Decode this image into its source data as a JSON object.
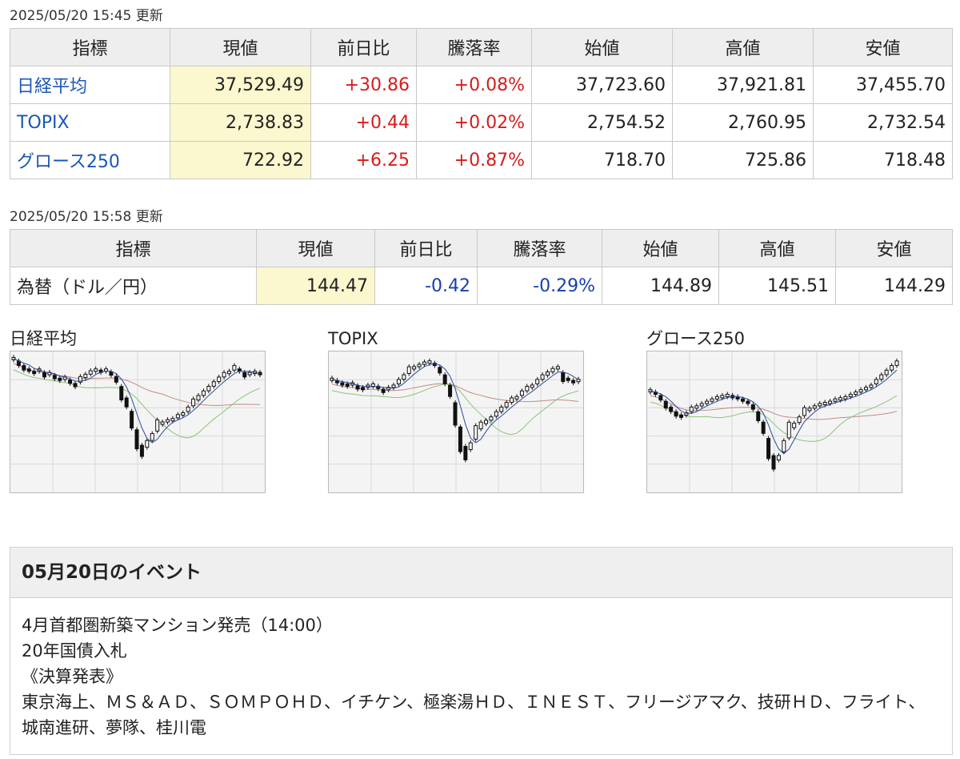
{
  "stamp1": "2025/05/20 15:45 更新",
  "stamp2": "2025/05/20 15:58 更新",
  "headers": [
    "指標",
    "現値",
    "前日比",
    "騰落率",
    "始値",
    "高値",
    "安値"
  ],
  "indices": [
    {
      "name": "日経平均",
      "current": "37,529.49",
      "change": "+30.86",
      "pct": "+0.08%",
      "open": "37,723.60",
      "high": "37,921.81",
      "low": "37,455.70"
    },
    {
      "name": "TOPIX",
      "current": "2,738.83",
      "change": "+0.44",
      "pct": "+0.02%",
      "open": "2,754.52",
      "high": "2,760.95",
      "low": "2,732.54"
    },
    {
      "name": "グロース250",
      "current": "722.92",
      "change": "+6.25",
      "pct": "+0.87%",
      "open": "718.70",
      "high": "725.86",
      "low": "718.48"
    }
  ],
  "fx": {
    "name": "為替（ドル／円）",
    "current": "144.47",
    "change": "-0.42",
    "pct": "-0.29%",
    "open": "144.89",
    "high": "145.51",
    "low": "144.29"
  },
  "colors": {
    "up": "#d61c1c",
    "down": "#1540b0",
    "current_bg": "#fbf8cf",
    "link": "#1a56b8",
    "ma_short": "#2a4aa0",
    "ma_mid": "#8cc27a",
    "ma_long": "#c48a86"
  },
  "charts": [
    {
      "title": "日経平均"
    },
    {
      "title": "TOPIX"
    },
    {
      "title": "グロース250"
    }
  ],
  "chart_data": [
    {
      "type": "candlestick",
      "title": "日経平均",
      "shape": [
        0.02,
        0.06,
        0.1,
        0.12,
        0.14,
        0.12,
        0.16,
        0.15,
        0.18,
        0.2,
        0.19,
        0.22,
        0.25,
        0.2,
        0.17,
        0.14,
        0.12,
        0.13,
        0.12,
        0.15,
        0.2,
        0.32,
        0.4,
        0.55,
        0.72,
        0.82,
        0.76,
        0.7,
        0.6,
        0.58,
        0.56,
        0.55,
        0.52,
        0.5,
        0.46,
        0.4,
        0.36,
        0.32,
        0.28,
        0.24,
        0.2,
        0.16,
        0.14,
        0.1,
        0.12,
        0.16,
        0.15,
        0.14,
        0.15
      ]
    },
    {
      "type": "candlestick",
      "title": "TOPIX",
      "shape": [
        0.2,
        0.22,
        0.24,
        0.25,
        0.24,
        0.27,
        0.28,
        0.26,
        0.25,
        0.27,
        0.3,
        0.28,
        0.26,
        0.22,
        0.18,
        0.12,
        0.1,
        0.08,
        0.06,
        0.05,
        0.07,
        0.12,
        0.2,
        0.3,
        0.5,
        0.72,
        0.84,
        0.78,
        0.66,
        0.6,
        0.57,
        0.54,
        0.5,
        0.46,
        0.42,
        0.38,
        0.36,
        0.32,
        0.28,
        0.26,
        0.22,
        0.18,
        0.15,
        0.12,
        0.1,
        0.18,
        0.2,
        0.22,
        0.21
      ]
    },
    {
      "type": "candlestick",
      "title": "グロース250",
      "shape": [
        0.3,
        0.32,
        0.36,
        0.42,
        0.46,
        0.5,
        0.52,
        0.5,
        0.46,
        0.44,
        0.42,
        0.4,
        0.38,
        0.36,
        0.35,
        0.34,
        0.35,
        0.36,
        0.38,
        0.4,
        0.44,
        0.52,
        0.62,
        0.8,
        0.92,
        0.88,
        0.78,
        0.64,
        0.6,
        0.55,
        0.48,
        0.46,
        0.44,
        0.42,
        0.41,
        0.4,
        0.38,
        0.37,
        0.36,
        0.34,
        0.32,
        0.3,
        0.28,
        0.26,
        0.22,
        0.18,
        0.14,
        0.1,
        0.06
      ]
    }
  ],
  "events": {
    "title": "05月20日のイベント",
    "lines": [
      "4月首都圏新築マンション発売（14:00）",
      "20年国債入札",
      "《決算発表》",
      "東京海上、ＭＳ＆ＡＤ、ＳＯＭＰＯＨＤ、イチケン、極楽湯ＨＤ、ＩＮＥＳＴ、フリージアマク、技研ＨＤ、フライト、城南進研、夢隊、桂川電"
    ]
  }
}
